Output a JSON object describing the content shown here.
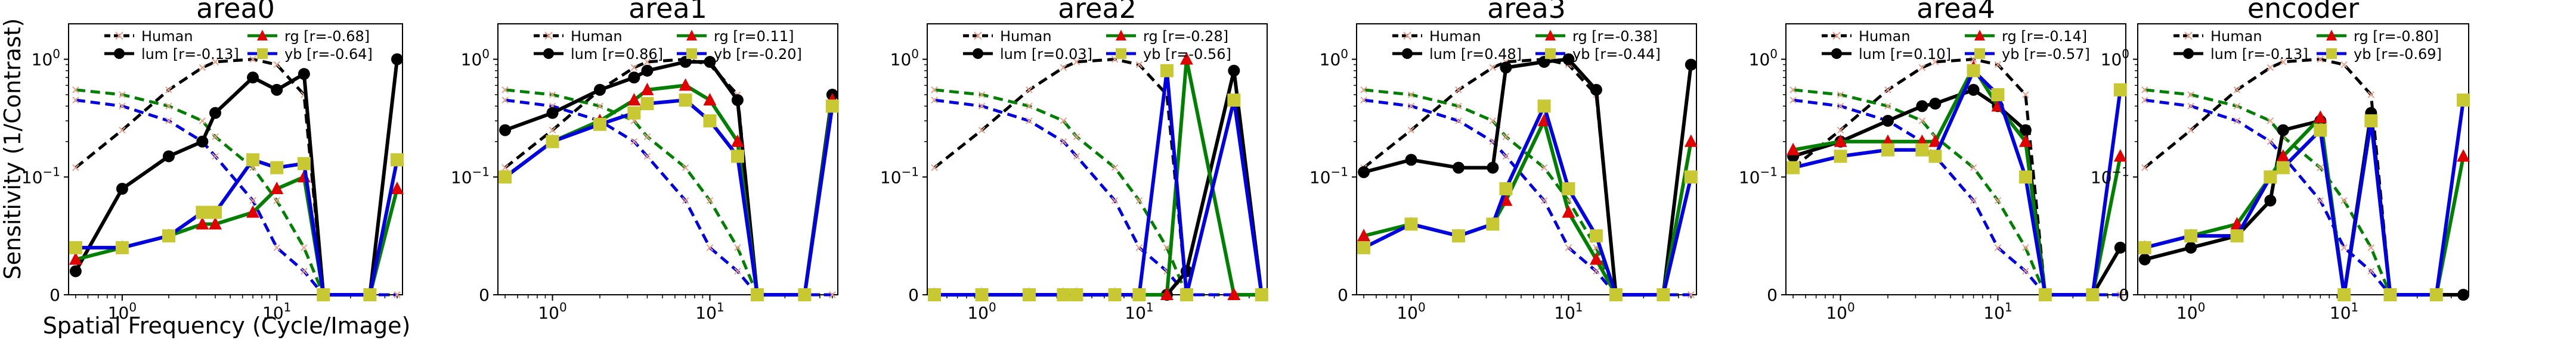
{
  "figure": {
    "ylabel": "Sensitivity (1/Contrast)",
    "xlabel": "Spatial Frequency (Cycle/Image)"
  },
  "colors": {
    "human": "#000000",
    "lum": "#000000",
    "rg": "#007f00",
    "yb": "#0000e0",
    "rg_marker": "#e00000",
    "yb_marker": "#c8c832",
    "human_marker": "#e8a08a"
  },
  "chart_data": [
    {
      "type": "line",
      "title": "area0",
      "xscale": "log",
      "yscale": "symlog",
      "ylim": [
        0,
        2
      ],
      "x_ticks": [
        "10^0",
        "10^1"
      ],
      "y_ticks": [
        "0",
        "10^-1",
        "10^0"
      ],
      "legend": [
        "Human",
        "lum [r=-0.13]",
        "rg [r=-0.68]",
        "yb [r=-0.64]"
      ],
      "x": [
        0.5,
        1.0,
        2.0,
        3.3,
        4.0,
        7.0,
        10.0,
        15.0,
        20.0,
        40.0,
        60.0
      ],
      "series": [
        {
          "name": "lum",
          "r": "-0.13",
          "values": [
            0.02,
            0.09,
            0.15,
            0.2,
            0.35,
            0.7,
            0.55,
            0.75,
            0.0,
            0.0,
            1.0
          ]
        },
        {
          "name": "rg",
          "r": "-0.68",
          "values": [
            0.03,
            0.04,
            0.05,
            0.06,
            0.06,
            0.07,
            0.09,
            0.1,
            0.0,
            0.0,
            0.09
          ]
        },
        {
          "name": "yb",
          "r": "-0.64",
          "values": [
            0.04,
            0.04,
            0.05,
            0.07,
            0.07,
            0.14,
            0.12,
            0.13,
            0.0,
            0.0,
            0.14
          ]
        }
      ]
    },
    {
      "type": "line",
      "title": "area1",
      "xscale": "log",
      "yscale": "symlog",
      "ylim": [
        0,
        2
      ],
      "x_ticks": [
        "10^0",
        "10^1"
      ],
      "y_ticks": [
        "0",
        "10^-1",
        "10^0"
      ],
      "legend": [
        "Human",
        "lum [r=0.86]",
        "rg [r=0.11]",
        "yb [r=-0.20]"
      ],
      "x": [
        0.5,
        1.0,
        2.0,
        3.3,
        4.0,
        7.0,
        10.0,
        15.0,
        20.0,
        40.0,
        60.0
      ],
      "series": [
        {
          "name": "lum",
          "r": "0.86",
          "values": [
            0.25,
            0.35,
            0.55,
            0.7,
            0.8,
            0.95,
            0.95,
            0.45,
            0.0,
            0.0,
            0.5
          ]
        },
        {
          "name": "rg",
          "r": "0.11",
          "values": [
            0.1,
            0.2,
            0.3,
            0.45,
            0.55,
            0.6,
            0.45,
            0.2,
            0.0,
            0.0,
            0.45
          ]
        },
        {
          "name": "yb",
          "r": "-0.20",
          "values": [
            0.1,
            0.2,
            0.28,
            0.35,
            0.42,
            0.45,
            0.3,
            0.15,
            0.0,
            0.0,
            0.4
          ]
        }
      ]
    },
    {
      "type": "line",
      "title": "area2",
      "xscale": "log",
      "yscale": "symlog",
      "ylim": [
        0,
        2
      ],
      "x_ticks": [
        "10^0",
        "10^1"
      ],
      "y_ticks": [
        "0",
        "10^-1",
        "10^0"
      ],
      "legend": [
        "Human",
        "lum [r=0.03]",
        "rg [r=-0.28]",
        "yb [r=-0.56]"
      ],
      "x": [
        0.5,
        1.0,
        2.0,
        3.3,
        4.0,
        7.0,
        10.0,
        15.0,
        20.0,
        40.0,
        60.0
      ],
      "series": [
        {
          "name": "lum",
          "r": "0.03",
          "values": [
            0.0,
            0.0,
            0.0,
            0.0,
            0.0,
            0.0,
            0.0,
            0.0,
            0.02,
            0.8,
            0.0
          ]
        },
        {
          "name": "rg",
          "r": "-0.28",
          "values": [
            0.0,
            0.0,
            0.0,
            0.0,
            0.0,
            0.0,
            0.0,
            0.0,
            1.0,
            0.0,
            0.0
          ]
        },
        {
          "name": "yb",
          "r": "-0.56",
          "values": [
            0.0,
            0.0,
            0.0,
            0.0,
            0.0,
            0.0,
            0.0,
            0.8,
            0.0,
            0.45,
            0.0
          ]
        }
      ]
    },
    {
      "type": "line",
      "title": "area3",
      "xscale": "log",
      "yscale": "symlog",
      "ylim": [
        0,
        2
      ],
      "x_ticks": [
        "10^0",
        "10^1"
      ],
      "y_ticks": [
        "0",
        "10^-1",
        "10^0"
      ],
      "legend": [
        "Human",
        "lum [r=0.48]",
        "rg [r=-0.38]",
        "yb [r=-0.44]"
      ],
      "x": [
        0.5,
        1.0,
        2.0,
        3.3,
        4.0,
        7.0,
        10.0,
        15.0,
        20.0,
        40.0,
        60.0
      ],
      "series": [
        {
          "name": "lum",
          "r": "0.48",
          "values": [
            0.11,
            0.14,
            0.12,
            0.12,
            0.85,
            0.95,
            1.0,
            0.55,
            0.0,
            0.0,
            0.9
          ]
        },
        {
          "name": "rg",
          "r": "-0.38",
          "values": [
            0.05,
            0.06,
            0.05,
            0.06,
            0.08,
            0.3,
            0.07,
            0.03,
            0.0,
            0.0,
            0.2
          ]
        },
        {
          "name": "yb",
          "r": "-0.44",
          "values": [
            0.04,
            0.06,
            0.05,
            0.06,
            0.09,
            0.4,
            0.09,
            0.05,
            0.0,
            0.0,
            0.1
          ]
        }
      ]
    },
    {
      "type": "line",
      "title": "area4",
      "xscale": "log",
      "yscale": "symlog",
      "ylim": [
        0,
        2
      ],
      "x_ticks": [
        "10^0",
        "10^1"
      ],
      "y_ticks": [
        "0",
        "10^-1",
        "10^0"
      ],
      "legend": [
        "Human",
        "lum [r=0.10]",
        "rg [r=-0.14]",
        "yb [r=-0.57]"
      ],
      "x": [
        0.5,
        1.0,
        2.0,
        3.3,
        4.0,
        7.0,
        10.0,
        15.0,
        20.0,
        40.0,
        60.0
      ],
      "series": [
        {
          "name": "lum",
          "r": "0.10",
          "values": [
            0.15,
            0.2,
            0.3,
            0.4,
            0.42,
            0.55,
            0.4,
            0.25,
            0.0,
            0.0,
            0.04
          ]
        },
        {
          "name": "rg",
          "r": "-0.14",
          "values": [
            0.17,
            0.2,
            0.2,
            0.2,
            0.2,
            0.85,
            0.4,
            0.2,
            0.0,
            0.0,
            0.15
          ]
        },
        {
          "name": "yb",
          "r": "-0.57",
          "values": [
            0.12,
            0.15,
            0.17,
            0.17,
            0.15,
            0.8,
            0.5,
            0.1,
            0.0,
            0.0,
            0.55
          ]
        }
      ]
    },
    {
      "type": "line",
      "title": "encoder",
      "xscale": "log",
      "yscale": "symlog",
      "ylim": [
        0,
        2
      ],
      "x_ticks": [
        "10^0",
        "10^1"
      ],
      "y_ticks": [
        "0",
        "10^-1",
        "10^0"
      ],
      "legend": [
        "Human",
        "lum [r=-0.13]",
        "rg [r=-0.80]",
        "yb [r=-0.69]"
      ],
      "x": [
        0.5,
        1.0,
        2.0,
        3.3,
        4.0,
        7.0,
        10.0,
        15.0,
        20.0,
        40.0,
        60.0
      ],
      "series": [
        {
          "name": "lum",
          "r": "-0.13",
          "values": [
            0.03,
            0.04,
            0.05,
            0.08,
            0.25,
            0.3,
            0.0,
            0.35,
            0.0,
            0.0,
            0.0
          ]
        },
        {
          "name": "rg",
          "r": "-0.80",
          "values": [
            0.04,
            0.05,
            0.06,
            0.1,
            0.15,
            0.32,
            0.0,
            0.3,
            0.0,
            0.0,
            0.15
          ]
        },
        {
          "name": "yb",
          "r": "-0.69",
          "values": [
            0.04,
            0.05,
            0.05,
            0.1,
            0.12,
            0.25,
            0.0,
            0.3,
            0.0,
            0.0,
            0.45
          ]
        }
      ]
    }
  ],
  "human_csf": {
    "lum": {
      "x": [
        0.5,
        1.0,
        2.0,
        3.3,
        4.0,
        7.0,
        10.0,
        15.0,
        20.0,
        40.0,
        60.0
      ],
      "values": [
        0.12,
        0.25,
        0.55,
        0.85,
        0.95,
        1.0,
        0.9,
        0.5,
        0.0,
        0.0,
        0.0
      ]
    },
    "rg": {
      "x": [
        0.5,
        1.0,
        2.0,
        3.3,
        4.0,
        7.0,
        10.0,
        15.0,
        20.0,
        40.0,
        60.0
      ],
      "values": [
        0.55,
        0.5,
        0.4,
        0.3,
        0.22,
        0.12,
        0.08,
        0.04,
        0.0,
        0.0,
        0.0
      ]
    },
    "yb": {
      "x": [
        0.5,
        1.0,
        2.0,
        3.3,
        4.0,
        7.0,
        10.0,
        15.0,
        20.0,
        40.0,
        60.0
      ],
      "values": [
        0.45,
        0.4,
        0.3,
        0.2,
        0.15,
        0.08,
        0.04,
        0.02,
        0.0,
        0.0,
        0.0
      ]
    }
  }
}
